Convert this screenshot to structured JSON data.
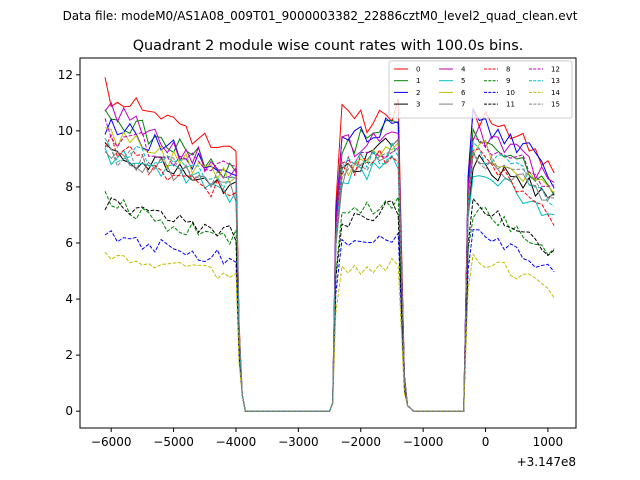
{
  "chart_data": {
    "type": "line",
    "suptitle": "Data file: modeM0/AS1A08_009T01_9000003382_22886cztM0_level2_quad_clean.evt",
    "title": "Quadrant 2 module wise count rates with 100.0s bins.",
    "xlabel": "",
    "ylabel": "",
    "x_offset_label": "+3.147e8",
    "xlim": [
      -6500,
      1450
    ],
    "ylim": [
      -0.6,
      12.6
    ],
    "xticks": [
      -6000,
      -5000,
      -4000,
      -3000,
      -2000,
      -1000,
      0,
      1000
    ],
    "xtick_labels": [
      "−6000",
      "−5000",
      "−4000",
      "−3000",
      "−2000",
      "−1000",
      "0",
      "1000"
    ],
    "yticks": [
      0,
      2,
      4,
      6,
      8,
      10,
      12
    ],
    "ytick_labels": [
      "0",
      "2",
      "4",
      "6",
      "8",
      "10",
      "12"
    ],
    "legend_position": "top-right",
    "gaps": [
      [
        -3850,
        -2500
      ],
      [
        -1150,
        -350
      ]
    ],
    "series": [
      {
        "name": "0",
        "color": "#ff0000",
        "dash": "solid",
        "s1": [
          11.4,
          10.2,
          9.0
        ],
        "s2": [
          10.5,
          10.3,
          10.9
        ],
        "s3": [
          10.5,
          10.0,
          8.6
        ]
      },
      {
        "name": "1",
        "color": "#008000",
        "dash": "solid",
        "s1": [
          10.6,
          9.6,
          8.4
        ],
        "s2": [
          9.4,
          9.9,
          10.2
        ],
        "s3": [
          10.1,
          9.3,
          7.9
        ]
      },
      {
        "name": "2",
        "color": "#0000ff",
        "dash": "solid",
        "s1": [
          10.2,
          9.4,
          8.2
        ],
        "s2": [
          10.0,
          9.8,
          10.4
        ],
        "s3": [
          10.4,
          9.7,
          8.3
        ]
      },
      {
        "name": "3",
        "color": "#000000",
        "dash": "solid",
        "s1": [
          9.2,
          8.7,
          7.9
        ],
        "s2": [
          8.5,
          9.0,
          9.6
        ],
        "s3": [
          8.9,
          8.4,
          7.6
        ]
      },
      {
        "name": "4",
        "color": "#bf00bf",
        "dash": "solid",
        "s1": [
          10.8,
          9.4,
          8.5
        ],
        "s2": [
          9.5,
          9.5,
          10.0
        ],
        "s3": [
          10.0,
          9.2,
          8.1
        ]
      },
      {
        "name": "5",
        "color": "#00bfbf",
        "dash": "solid",
        "s1": [
          9.1,
          8.6,
          7.6
        ],
        "s2": [
          8.4,
          8.6,
          9.0
        ],
        "s3": [
          8.6,
          8.0,
          6.9
        ]
      },
      {
        "name": "6",
        "color": "#bfbf00",
        "dash": "solid",
        "s1": [
          9.8,
          9.0,
          8.2
        ],
        "s2": [
          8.6,
          9.2,
          9.6
        ],
        "s3": [
          9.5,
          8.8,
          7.8
        ]
      },
      {
        "name": "7",
        "color": "#808080",
        "dash": "solid",
        "s1": [
          9.0,
          8.6,
          7.8
        ],
        "s2": [
          8.4,
          8.8,
          9.3
        ],
        "s3": [
          9.0,
          8.5,
          7.5
        ]
      },
      {
        "name": "8",
        "color": "#ff0000",
        "dash": "dashed",
        "s1": [
          9.6,
          8.4,
          7.7
        ],
        "s2": [
          8.7,
          8.9,
          9.3
        ],
        "s3": [
          9.3,
          8.3,
          6.7
        ]
      },
      {
        "name": "9",
        "color": "#008000",
        "dash": "dashed",
        "s1": [
          7.6,
          6.6,
          6.2
        ],
        "s2": [
          7.0,
          7.2,
          7.6
        ],
        "s3": [
          7.2,
          6.6,
          5.6
        ]
      },
      {
        "name": "10",
        "color": "#0000ff",
        "dash": "dashed",
        "s1": [
          6.3,
          5.8,
          5.4
        ],
        "s2": [
          6.0,
          6.0,
          6.3
        ],
        "s3": [
          6.3,
          5.7,
          5.0
        ]
      },
      {
        "name": "11",
        "color": "#000000",
        "dash": "dashed",
        "s1": [
          7.4,
          6.8,
          6.3
        ],
        "s2": [
          6.8,
          7.0,
          7.3
        ],
        "s3": [
          7.4,
          6.5,
          5.6
        ]
      },
      {
        "name": "12",
        "color": "#bf00bf",
        "dash": "dashed",
        "s1": [
          10.0,
          9.2,
          8.4
        ],
        "s2": [
          9.2,
          9.3,
          9.6
        ],
        "s3": [
          9.6,
          9.0,
          8.0
        ]
      },
      {
        "name": "13",
        "color": "#00bfbf",
        "dash": "dashed",
        "s1": [
          9.4,
          8.9,
          8.1
        ],
        "s2": [
          8.8,
          9.0,
          9.4
        ],
        "s3": [
          9.2,
          8.6,
          7.6
        ]
      },
      {
        "name": "14",
        "color": "#bfbf00",
        "dash": "dashed",
        "s1": [
          5.7,
          5.2,
          4.8
        ],
        "s2": [
          5.0,
          5.1,
          5.3
        ],
        "s3": [
          5.4,
          5.0,
          4.2
        ]
      },
      {
        "name": "15",
        "color": "#808080",
        "dash": "dashed",
        "s1": [
          9.2,
          8.7,
          8.0
        ],
        "s2": [
          8.6,
          8.9,
          9.2
        ],
        "s3": [
          9.0,
          8.5,
          7.7
        ]
      }
    ]
  }
}
